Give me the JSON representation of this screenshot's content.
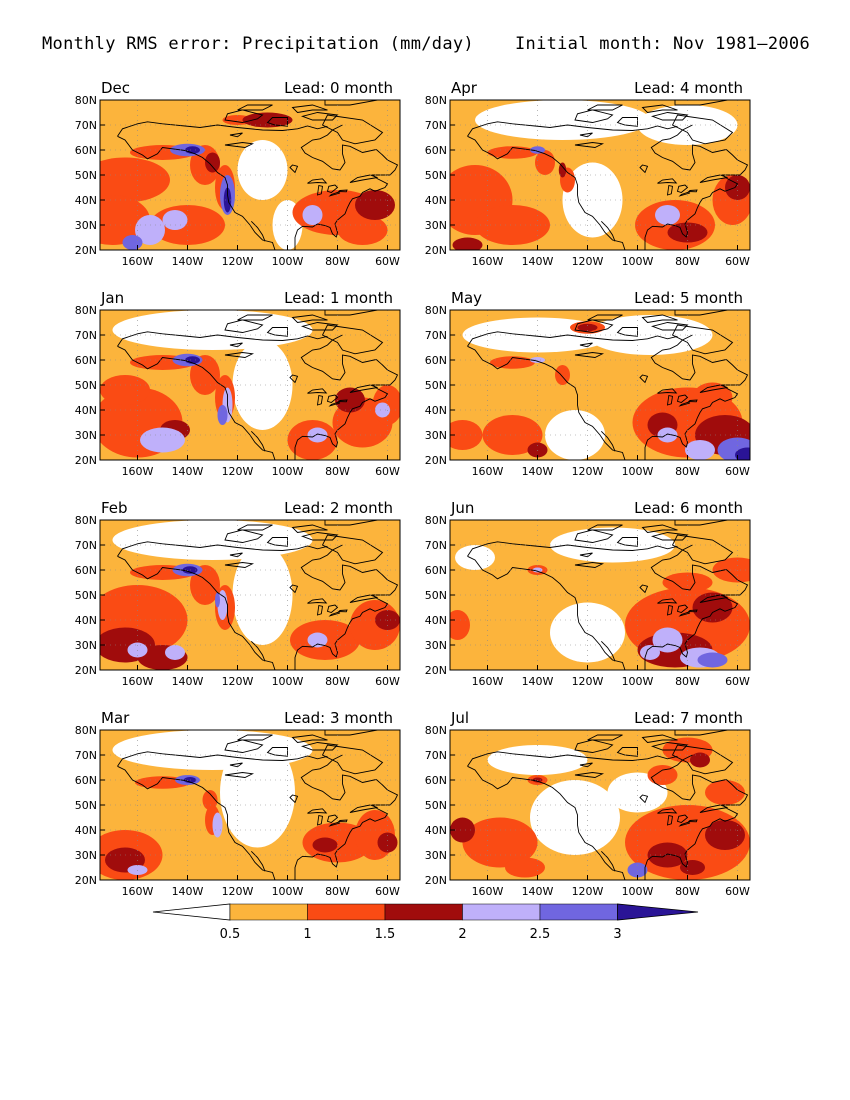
{
  "title": {
    "left": "Monthly RMS error: Precipitation (mm/day)",
    "right": "Initial month: Nov 1981–2006"
  },
  "lat_labels": [
    "80N",
    "70N",
    "60N",
    "50N",
    "40N",
    "30N",
    "20N"
  ],
  "lon_labels": [
    "160W",
    "140W",
    "120W",
    "100W",
    "80W",
    "60W"
  ],
  "panels": [
    {
      "id": "dec",
      "month": "Dec",
      "lead": "Lead: 0 month",
      "col": 0,
      "row": 0
    },
    {
      "id": "apr",
      "month": "Apr",
      "lead": "Lead: 4 month",
      "col": 1,
      "row": 0
    },
    {
      "id": "jan",
      "month": "Jan",
      "lead": "Lead: 1 month",
      "col": 0,
      "row": 1
    },
    {
      "id": "may",
      "month": "May",
      "lead": "Lead: 5 month",
      "col": 1,
      "row": 1
    },
    {
      "id": "feb",
      "month": "Feb",
      "lead": "Lead: 2 month",
      "col": 0,
      "row": 2
    },
    {
      "id": "jun",
      "month": "Jun",
      "lead": "Lead: 6 month",
      "col": 1,
      "row": 2
    },
    {
      "id": "mar",
      "month": "Mar",
      "lead": "Lead: 3 month",
      "col": 0,
      "row": 3
    },
    {
      "id": "jul",
      "month": "Jul",
      "lead": "Lead: 7 month",
      "col": 1,
      "row": 3
    }
  ],
  "colorbar": {
    "colors": [
      "#ffffff",
      "#fcb43c",
      "#fa4b14",
      "#a00c0c",
      "#bfb0fa",
      "#7066e0",
      "#2a1496"
    ],
    "tick_labels": [
      "0.5",
      "1",
      "1.5",
      "2",
      "2.5",
      "3"
    ]
  },
  "chart_data": {
    "type": "heatmap",
    "title": "Monthly RMS error: Precipitation (mm/day)",
    "subtitle": "Initial month: Nov 1981–2006",
    "lon_range": [
      -175,
      -55
    ],
    "lat_range": [
      20,
      80
    ],
    "levels": [
      0.5,
      1,
      1.5,
      2,
      2.5,
      3
    ]
  }
}
